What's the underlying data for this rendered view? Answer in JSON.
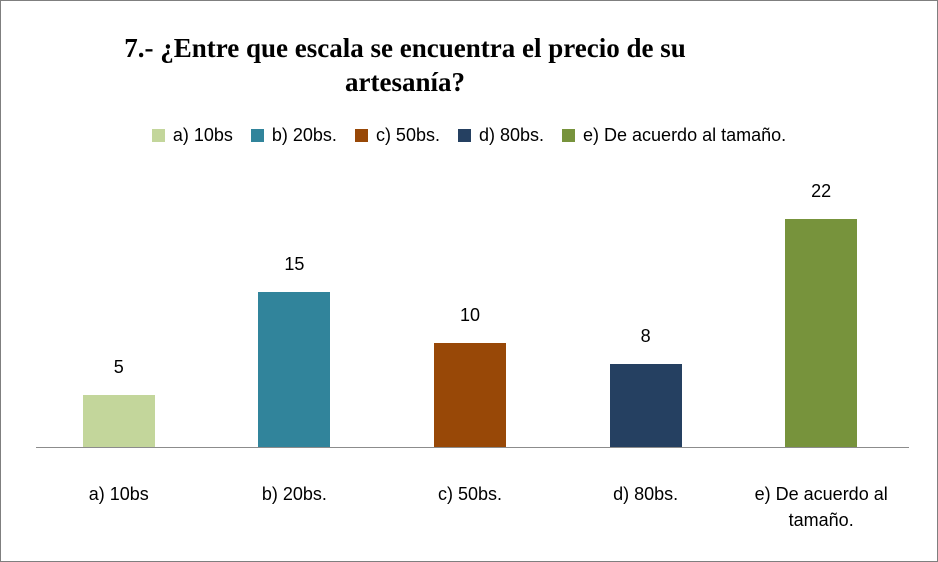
{
  "chart_data": {
    "type": "bar",
    "title": "7.- ¿Entre que escala se encuentra el precio de su artesanía?",
    "categories": [
      "a) 10bs",
      "b) 20bs.",
      "c) 50bs.",
      "d) 80bs.",
      "e) De acuerdo al tamaño."
    ],
    "values": [
      5,
      15,
      10,
      8,
      22
    ],
    "colors": [
      "#c3d69b",
      "#31849b",
      "#984807",
      "#254061",
      "#77933c"
    ],
    "legend": "top"
  }
}
